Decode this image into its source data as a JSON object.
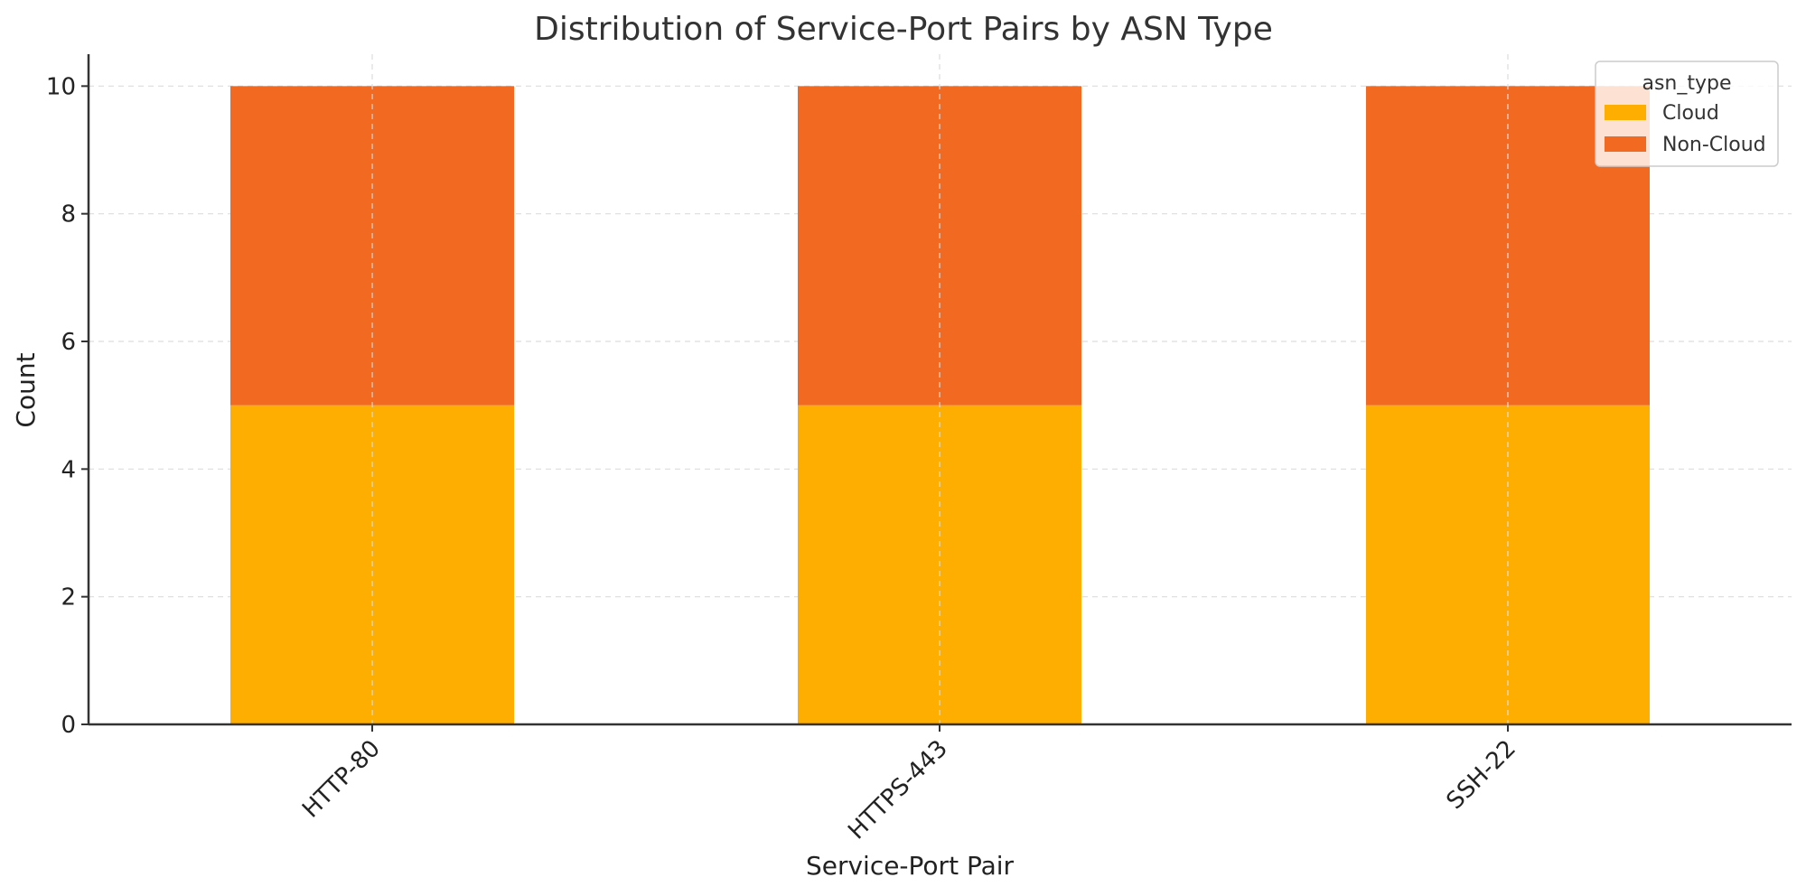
{
  "chart_data": {
    "type": "bar",
    "stacked": true,
    "title": "Distribution of Service-Port Pairs by ASN Type",
    "xlabel": "Service-Port Pair",
    "ylabel": "Count",
    "categories": [
      "HTTP-80",
      "HTTPS-443",
      "SSH-22"
    ],
    "series": [
      {
        "name": "Cloud",
        "values": [
          5,
          5,
          5
        ],
        "color": "#fdae01"
      },
      {
        "name": "Non-Cloud",
        "values": [
          5,
          5,
          5
        ],
        "color": "#f26922"
      }
    ],
    "ylim": [
      0,
      10.5
    ],
    "yticks": [
      0,
      2,
      4,
      6,
      8,
      10
    ],
    "grid": true,
    "legend": {
      "title": "asn_type",
      "placement": "top-right"
    }
  }
}
